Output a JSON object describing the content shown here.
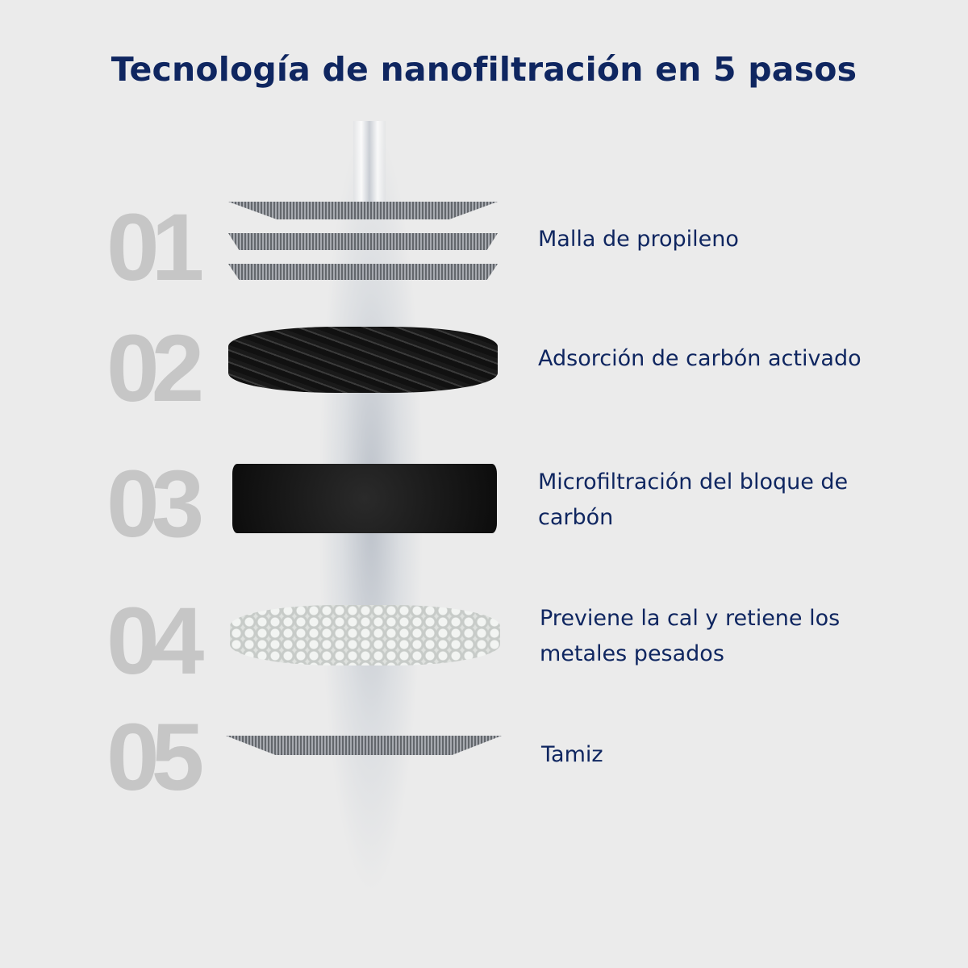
{
  "title": "Tecnología de nanofiltración en 5 pasos",
  "steps": [
    {
      "number": "01",
      "label": "Malla de propileno"
    },
    {
      "number": "02",
      "label": "Adsorción de carbón activado"
    },
    {
      "number": "03",
      "label": "Microfiltración del bloque de carbón"
    },
    {
      "number": "04",
      "label": "Previene la cal y retiene los metales pesados"
    },
    {
      "number": "05",
      "label": "Tamiz"
    }
  ],
  "colors": {
    "title": "#0f2660",
    "number": "#c6c6c6",
    "background": "#ebebeb"
  }
}
